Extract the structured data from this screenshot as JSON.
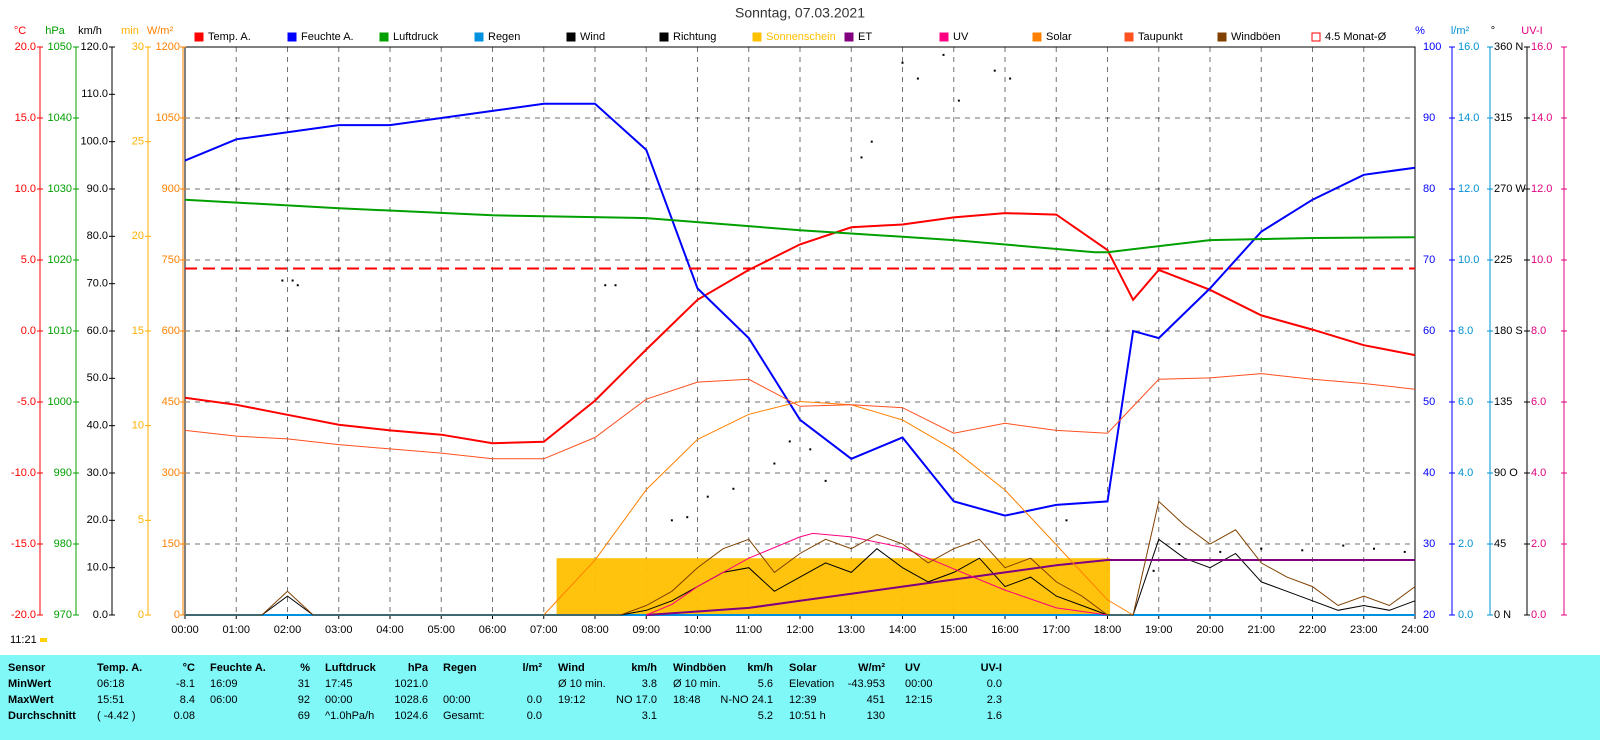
{
  "chart_data": {
    "type": "line",
    "title": "Sonntag, 07.03.2021",
    "xlim": [
      0,
      24
    ],
    "xticks": [
      {
        "value": 0,
        "label": "00:00"
      },
      {
        "value": 1,
        "label": "01:00"
      },
      {
        "value": 2,
        "label": "02:00"
      },
      {
        "value": 3,
        "label": "03:00"
      },
      {
        "value": 4,
        "label": "04:00"
      },
      {
        "value": 5,
        "label": "05:00"
      },
      {
        "value": 6,
        "label": "06:00"
      },
      {
        "value": 7,
        "label": "07:00"
      },
      {
        "value": 8,
        "label": "08:00"
      },
      {
        "value": 9,
        "label": "09:00"
      },
      {
        "value": 10,
        "label": "10:00"
      },
      {
        "value": 11,
        "label": "11:00"
      },
      {
        "value": 12,
        "label": "12:00"
      },
      {
        "value": 13,
        "label": "13:00"
      },
      {
        "value": 14,
        "label": "14:00"
      },
      {
        "value": 15,
        "label": "15:00"
      },
      {
        "value": 16,
        "label": "16:00"
      },
      {
        "value": 17,
        "label": "17:00"
      },
      {
        "value": 18,
        "label": "18:00"
      },
      {
        "value": 19,
        "label": "19:00"
      },
      {
        "value": 20,
        "label": "20:00"
      },
      {
        "value": 21,
        "label": "21:00"
      },
      {
        "value": 22,
        "label": "22:00"
      },
      {
        "value": 23,
        "label": "23:00"
      },
      {
        "value": 24,
        "label": "24:00"
      }
    ],
    "grid": true,
    "y_axes": [
      {
        "label": "°C",
        "color": "#ff0000",
        "side": "left",
        "ylim": [
          -20,
          20
        ],
        "yticks": [
          {
            "value": 20,
            "label": "20.0"
          },
          {
            "value": 15,
            "label": "15.0"
          },
          {
            "value": 10,
            "label": "10.0"
          },
          {
            "value": 5,
            "label": "5.0"
          },
          {
            "value": 0,
            "label": "0.0"
          },
          {
            "value": -5,
            "label": "-5.0"
          },
          {
            "value": -10,
            "label": "-10.0"
          },
          {
            "value": -15,
            "label": "-15.0"
          },
          {
            "value": -20,
            "label": "-20.0"
          }
        ]
      },
      {
        "label": "hPa",
        "color": "#00a000",
        "side": "left",
        "ylim": [
          970,
          1050
        ],
        "yticks": [
          1050,
          1040,
          1030,
          1020,
          1010,
          1000,
          990,
          980,
          970
        ]
      },
      {
        "label": "km/h",
        "color": "#000000",
        "side": "left",
        "ylim": [
          0,
          120
        ],
        "yticks": [
          {
            "value": 120,
            "label": "120.0"
          },
          {
            "value": 110,
            "label": "110.0"
          },
          {
            "value": 100,
            "label": "100.0"
          },
          {
            "value": 90,
            "label": "90.0"
          },
          {
            "value": 80,
            "label": "80.0"
          },
          {
            "value": 70,
            "label": "70.0"
          },
          {
            "value": 60,
            "label": "60.0"
          },
          {
            "value": 50,
            "label": "50.0"
          },
          {
            "value": 40,
            "label": "40.0"
          },
          {
            "value": 30,
            "label": "30.0"
          },
          {
            "value": 20,
            "label": "20.0"
          },
          {
            "value": 10,
            "label": "10.0"
          },
          {
            "value": 0,
            "label": "0.0"
          }
        ]
      },
      {
        "label": "min",
        "color": "#ffb000",
        "side": "left",
        "ylim": [
          0,
          30
        ],
        "yticks": [
          30,
          25,
          20,
          15,
          10,
          5,
          0
        ]
      },
      {
        "label": "W/m²",
        "color": "#ff8000",
        "side": "left",
        "ylim": [
          0,
          1200
        ],
        "yticks": [
          1200,
          1050,
          900,
          750,
          600,
          450,
          300,
          150,
          0
        ]
      },
      {
        "label": "%",
        "color": "#0000ff",
        "side": "right",
        "ylim": [
          20,
          100
        ],
        "yticks": [
          100,
          90,
          80,
          70,
          60,
          50,
          40,
          30,
          20
        ]
      },
      {
        "label": "l/m²",
        "color": "#0090d0",
        "side": "right",
        "ylim": [
          0,
          16
        ],
        "yticks": [
          {
            "value": 16,
            "label": "16.0"
          },
          {
            "value": 14,
            "label": "14.0"
          },
          {
            "value": 12,
            "label": "12.0"
          },
          {
            "value": 10,
            "label": "10.0"
          },
          {
            "value": 8,
            "label": "8.0"
          },
          {
            "value": 6,
            "label": "6.0"
          },
          {
            "value": 4,
            "label": "4.0"
          },
          {
            "value": 2,
            "label": "2.0"
          },
          {
            "value": 0,
            "label": "0.0"
          }
        ]
      },
      {
        "label": "°",
        "color": "#000000",
        "side": "right",
        "ylim": [
          0,
          360
        ],
        "yticks": [
          {
            "value": 360,
            "label": "360 N"
          },
          315,
          {
            "value": 270,
            "label": "270 W"
          },
          225,
          {
            "value": 180,
            "label": "180 S"
          },
          135,
          {
            "value": 90,
            "label": "90 O"
          },
          45,
          {
            "value": 0,
            "label": "0 N"
          }
        ]
      },
      {
        "label": "UV-I",
        "color": "#e0007f",
        "side": "right",
        "ylim": [
          0,
          16
        ],
        "yticks": [
          {
            "value": 16,
            "label": "16.0"
          },
          {
            "value": 14,
            "label": "14.0"
          },
          {
            "value": 12,
            "label": "12.0"
          },
          {
            "value": 10,
            "label": "10.0"
          },
          {
            "value": 8,
            "label": "8.0"
          },
          {
            "value": 6,
            "label": "6.0"
          },
          {
            "value": 4,
            "label": "4.0"
          },
          {
            "value": 2,
            "label": "2.0"
          },
          {
            "value": 0,
            "label": "0.0"
          }
        ]
      }
    ],
    "series": [
      {
        "name": "Temp. A.",
        "color": "#ff0000",
        "axis": "°C",
        "style": "thick",
        "x": [
          0,
          1,
          2,
          3,
          4,
          5,
          6,
          7,
          8,
          9,
          10,
          11,
          12,
          13,
          14,
          15,
          16,
          17,
          18,
          18.5,
          19,
          20,
          21,
          22,
          23,
          24
        ],
        "values": [
          -4.7,
          -5.2,
          -5.9,
          -6.6,
          -7.0,
          -7.3,
          -7.9,
          -7.8,
          -4.9,
          -1.3,
          2.2,
          4.3,
          6.1,
          7.3,
          7.5,
          8.0,
          8.3,
          8.2,
          5.7,
          2.2,
          4.3,
          2.9,
          1.1,
          0.1,
          -1.0,
          -1.7
        ]
      },
      {
        "name": "Feuchte A.",
        "color": "#0000ff",
        "axis": "%",
        "style": "thick",
        "x": [
          0,
          1,
          2,
          3,
          4,
          5,
          6,
          7,
          8,
          9,
          10,
          11,
          12,
          13,
          14,
          15,
          16,
          17,
          18,
          18.5,
          19,
          20,
          21,
          22,
          23,
          24
        ],
        "values": [
          84,
          87,
          88,
          89,
          89,
          90,
          91,
          92,
          92,
          85.5,
          66,
          59,
          47.5,
          42,
          45,
          36,
          34,
          35.5,
          36,
          60,
          59,
          66,
          74,
          78.5,
          82,
          83
        ]
      },
      {
        "name": "Luftdruck",
        "color": "#00a000",
        "axis": "hPa",
        "style": "thick",
        "x": [
          0,
          3,
          6,
          9,
          12,
          15,
          17.75,
          18,
          20,
          22,
          24
        ],
        "values": [
          1028.5,
          1027.3,
          1026.3,
          1025.9,
          1024.2,
          1022.8,
          1021.1,
          1021.1,
          1022.8,
          1023.1,
          1023.2
        ]
      },
      {
        "name": "Regen",
        "color": "#0090e0",
        "axis": "l/m²",
        "style": "thick",
        "x": [
          0,
          24
        ],
        "values": [
          0,
          0
        ]
      },
      {
        "name": "Wind",
        "color": "#000000",
        "axis": "km/h",
        "style": "thin",
        "x": [
          0,
          0.5,
          1,
          1.5,
          2,
          2.5,
          3,
          3.5,
          4,
          4.5,
          5,
          5.5,
          6,
          6.5,
          7,
          7.5,
          8,
          8.5,
          9,
          9.5,
          10,
          10.5,
          11,
          11.5,
          12,
          12.5,
          13,
          13.5,
          14,
          14.5,
          15,
          15.5,
          16,
          16.5,
          17,
          17.5,
          18,
          18.5,
          19,
          19.5,
          20,
          20.5,
          21,
          21.5,
          22,
          22.5,
          23,
          23.5,
          24
        ],
        "values": [
          0,
          0,
          0,
          0,
          4,
          0,
          0,
          0,
          0,
          0,
          0,
          0,
          0,
          0,
          0,
          0,
          0,
          0,
          1,
          3,
          6,
          9,
          10,
          5,
          8,
          11,
          9,
          14,
          10,
          7,
          9,
          12,
          6,
          8,
          4,
          2,
          0,
          0,
          16,
          12,
          10,
          13,
          7,
          5,
          3,
          1,
          2,
          1,
          3
        ]
      },
      {
        "name": "Richtung",
        "color": "#000000",
        "axis": "°",
        "style": "dots",
        "x": [
          1.9,
          2.1,
          2.2,
          8.2,
          8.4,
          9.5,
          9.8,
          10.2,
          10.7,
          11.5,
          11.8,
          12.2,
          12.5,
          13.2,
          13.4,
          14.0,
          14.3,
          14.8,
          15.1,
          15.8,
          16.1,
          17.2,
          18.9,
          19.4,
          20.2,
          21.0,
          21.8,
          22.6,
          23.2,
          23.8
        ],
        "values": [
          212,
          212,
          209,
          209,
          209,
          60,
          62,
          75,
          80,
          96,
          110,
          105,
          85,
          290,
          300,
          350,
          340,
          355,
          326,
          345,
          340,
          60,
          28,
          45,
          40,
          42,
          41,
          44,
          42,
          40
        ]
      },
      {
        "name": "Sonnenschein",
        "color": "#ffc000",
        "axis": "min",
        "style": "area",
        "x": [
          7.25,
          18.05
        ],
        "values": [
          3,
          3
        ]
      },
      {
        "name": "ET",
        "color": "#800080",
        "axis": "l/m²",
        "style": "thick",
        "x": [
          9,
          10,
          11,
          12,
          13,
          14,
          15,
          16,
          17,
          18,
          24
        ],
        "values": [
          0,
          0.1,
          0.2,
          0.4,
          0.6,
          0.8,
          1.0,
          1.2,
          1.4,
          1.55,
          1.55
        ]
      },
      {
        "name": "UV",
        "color": "#ff0080",
        "axis": "UV-I",
        "style": "thin",
        "x": [
          9,
          9.5,
          10,
          11,
          12,
          12.25,
          13,
          14,
          15,
          16,
          17,
          18
        ],
        "values": [
          0,
          0.3,
          0.8,
          1.6,
          2.2,
          2.3,
          2.2,
          1.9,
          1.3,
          0.7,
          0.2,
          0
        ]
      },
      {
        "name": "Solar",
        "color": "#ff8000",
        "axis": "W/m²",
        "style": "thin",
        "x": [
          7,
          8,
          9,
          10,
          11,
          12,
          13,
          14,
          15,
          16,
          17,
          18,
          18.5
        ],
        "values": [
          0,
          116,
          265,
          371,
          424,
          451,
          444,
          412,
          349,
          264,
          148,
          32,
          0
        ]
      },
      {
        "name": "Taupunkt",
        "color": "#ff5020",
        "axis": "°C",
        "style": "thin",
        "x": [
          0,
          1,
          2,
          3,
          4,
          5,
          6,
          7,
          8,
          9,
          10,
          11,
          12,
          13,
          14,
          15,
          16,
          17,
          18,
          19,
          20,
          21,
          22,
          23,
          24
        ],
        "values": [
          -7.0,
          -7.4,
          -7.6,
          -8.0,
          -8.3,
          -8.6,
          -9.0,
          -9.0,
          -7.5,
          -4.8,
          -3.6,
          -3.4,
          -5.3,
          -5.2,
          -5.4,
          -7.2,
          -6.5,
          -7.0,
          -7.2,
          -3.4,
          -3.3,
          -3.0,
          -3.4,
          -3.7,
          -4.1
        ]
      },
      {
        "name": "Windböen",
        "color": "#804000",
        "axis": "km/h",
        "style": "thin",
        "x": [
          0,
          0.5,
          1,
          1.5,
          2,
          2.5,
          3,
          3.5,
          4,
          4.5,
          5,
          5.5,
          6,
          6.5,
          7,
          7.5,
          8,
          8.5,
          9,
          9.5,
          10,
          10.5,
          11,
          11.5,
          12,
          12.5,
          13,
          13.5,
          14,
          14.5,
          15,
          15.5,
          16,
          16.5,
          17,
          17.5,
          18,
          18.5,
          19,
          19.5,
          20,
          20.5,
          21,
          21.5,
          22,
          22.5,
          23,
          23.5,
          24
        ],
        "values": [
          0,
          0,
          0,
          0,
          5,
          0,
          0,
          0,
          0,
          0,
          0,
          0,
          0,
          0,
          0,
          0,
          0,
          0,
          2,
          5,
          10,
          14,
          16,
          9,
          13,
          16,
          14,
          17,
          15,
          11,
          14,
          16,
          10,
          12,
          7,
          4,
          0,
          0,
          24,
          19,
          15,
          18,
          11,
          8,
          6,
          2,
          4,
          2,
          6
        ]
      },
      {
        "name": "4.5 Monat-Ø",
        "color": "#ff0000",
        "axis": "°C",
        "style": "dashed",
        "x": [
          0,
          24
        ],
        "values": [
          4.4,
          4.4
        ]
      }
    ]
  },
  "status": {
    "time": "11:21"
  },
  "summary": {
    "rows": [
      [
        "Sensor",
        "Temp. A.",
        "°C",
        "Feuchte A.",
        "%",
        "Luftdruck",
        "hPa",
        "Regen",
        "l/m²",
        "Wind",
        "km/h",
        "Windböen",
        "km/h",
        "Solar",
        "W/m²",
        "UV",
        "UV-I"
      ],
      [
        "MinWert",
        "06:18",
        "-8.1",
        "16:09",
        "31",
        "17:45",
        "1021.0",
        null,
        null,
        "Ø 10 min.",
        "3.8",
        "Ø 10 min.",
        "5.6",
        "Elevation",
        "-43.953",
        "00:00",
        "0.0"
      ],
      [
        "MaxWert",
        "15:51",
        "8.4",
        "06:00",
        "92",
        "00:00",
        "1028.6",
        "00:00",
        "0.0",
        "19:12",
        "NO 17.0",
        "18:48",
        "N-NO 24.1",
        "12:39",
        "451",
        "12:15",
        "2.3"
      ],
      [
        "Durchschnitt",
        "( -4.42 )",
        "0.08",
        null,
        "69",
        "^1.0hPa/h",
        "1024.6",
        "Gesamt:",
        "0.0",
        null,
        "3.1",
        null,
        "5.2",
        "10:51 h",
        "130",
        null,
        "1.6"
      ]
    ]
  }
}
